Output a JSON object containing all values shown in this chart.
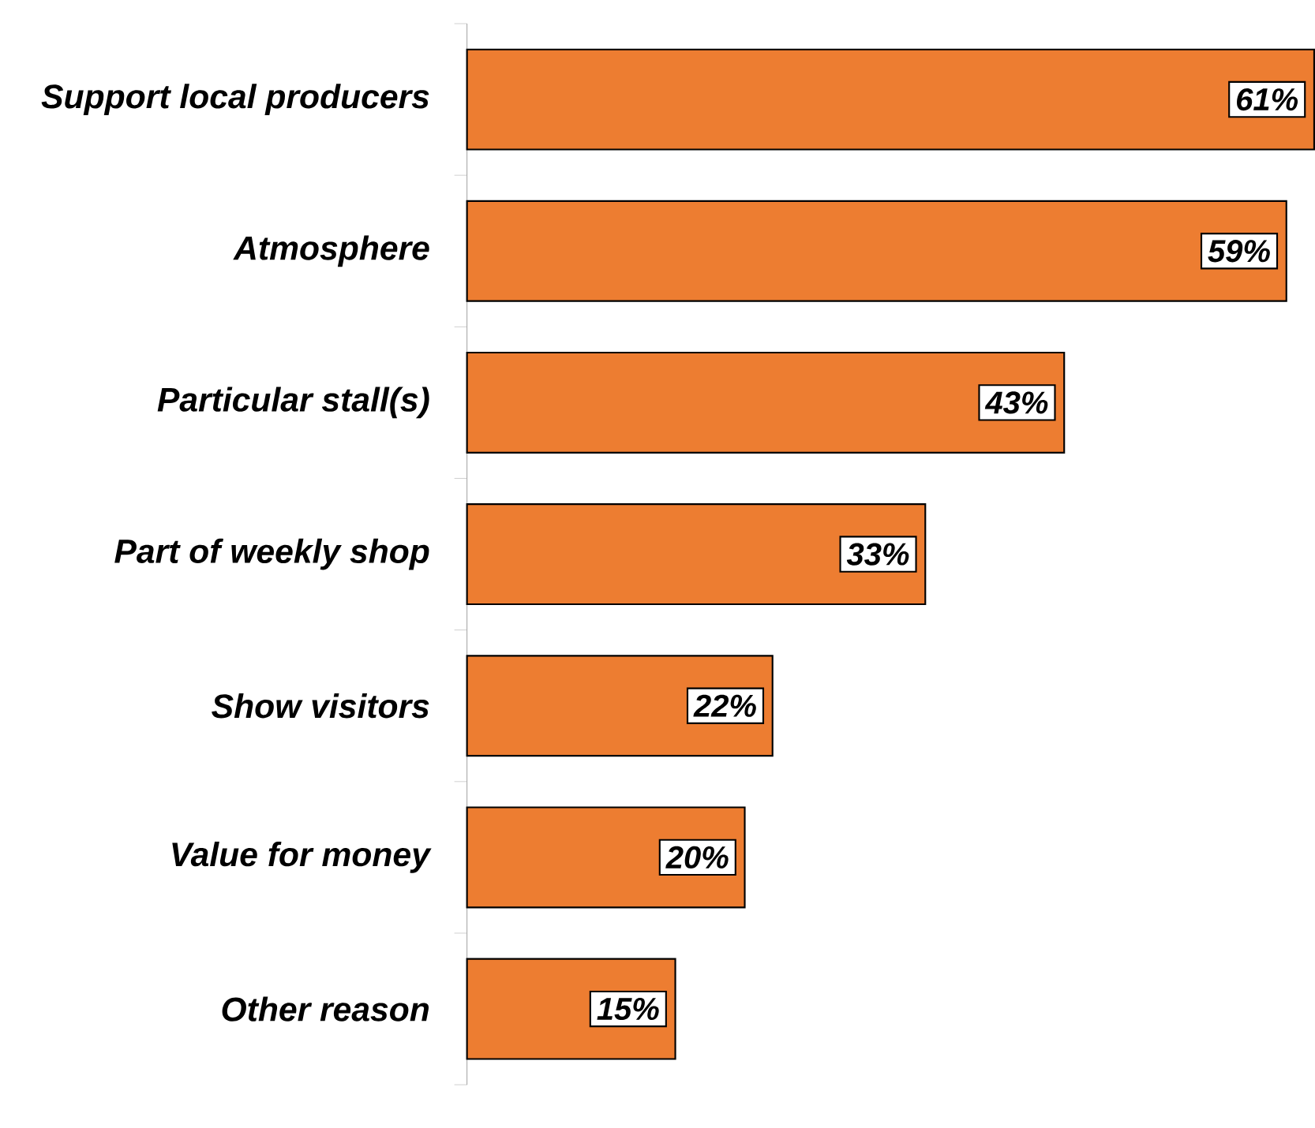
{
  "chart_data": {
    "type": "bar",
    "orientation": "horizontal",
    "categories": [
      "Support local producers",
      "Atmosphere",
      "Particular stall(s)",
      "Part of weekly shop",
      "Show visitors",
      "Value for money",
      "Other reason"
    ],
    "values": [
      61,
      59,
      43,
      33,
      22,
      20,
      15
    ],
    "value_labels": [
      "61%",
      "59%",
      "43%",
      "33%",
      "22%",
      "20%",
      "15%"
    ],
    "color": "#ed7d31"
  }
}
